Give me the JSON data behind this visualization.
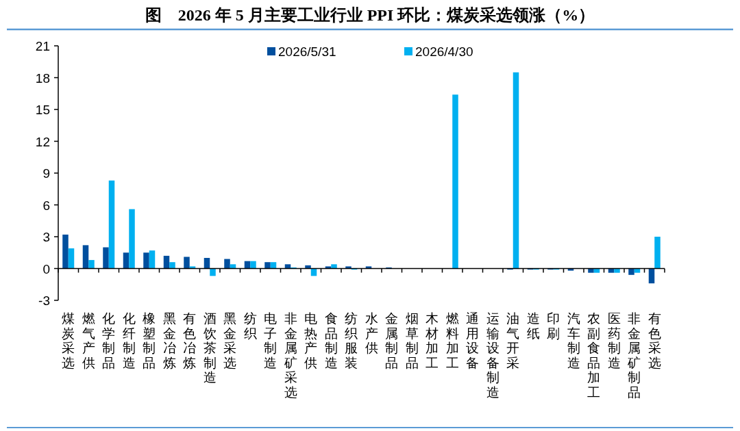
{
  "chart_data": {
    "type": "bar",
    "title": "图　2026 年 5 月主要工业行业 PPI 环比：煤炭采选领涨（%）",
    "categories": [
      "煤炭采选",
      "燃气产供",
      "化学制品",
      "化纤制造",
      "橡塑制品",
      "黑金冶炼",
      "有色冶炼",
      "酒饮茶制造",
      "黑金采选",
      "纺织",
      "电子制造",
      "非金属矿采选",
      "电热产供",
      "食品制造",
      "纺织服装",
      "水产供",
      "金属制品",
      "烟草制品",
      "木材加工",
      "燃料加工",
      "通用设备",
      "运输设备制造",
      "油气开采",
      "造纸",
      "印刷",
      "汽车制造",
      "农副食品加工",
      "医药制造",
      "非金属矿制品",
      "有色采选"
    ],
    "series": [
      {
        "name": "2026/5/31",
        "color": "#004f9e",
        "values": [
          3.2,
          2.2,
          2.0,
          1.5,
          1.5,
          1.2,
          1.1,
          1.0,
          0.9,
          0.7,
          0.6,
          0.4,
          0.3,
          0.2,
          0.2,
          0.2,
          0.1,
          0,
          0,
          0,
          0,
          0,
          -0.1,
          -0.1,
          -0.1,
          -0.2,
          -0.4,
          -0.4,
          -0.6,
          -1.4
        ]
      },
      {
        "name": "2026/4/30",
        "color": "#00b0f0",
        "values": [
          1.9,
          0.8,
          8.3,
          5.6,
          1.7,
          0.6,
          0.2,
          -0.7,
          0.4,
          0.7,
          0.6,
          0.1,
          -0.7,
          0.4,
          -0.1,
          0,
          0,
          0,
          0,
          16.4,
          0,
          0,
          18.5,
          -0.1,
          -0.1,
          0,
          -0.4,
          -0.4,
          -0.4,
          3.0
        ]
      }
    ],
    "ylim": [
      -3,
      21
    ],
    "yticks": [
      -3,
      0,
      3,
      6,
      9,
      12,
      15,
      18,
      21
    ],
    "legend": "top"
  }
}
